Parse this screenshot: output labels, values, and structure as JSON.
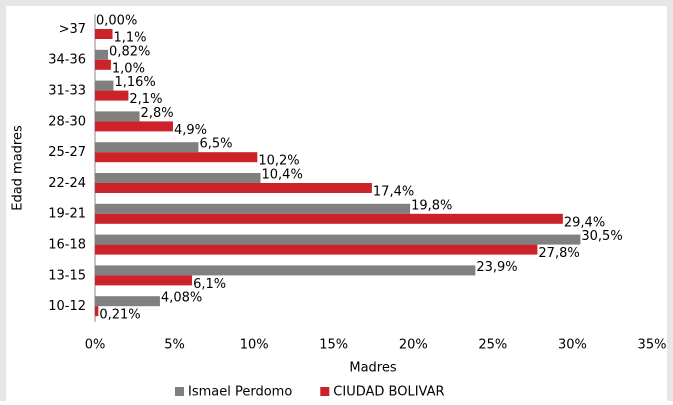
{
  "chart_data": {
    "type": "bar",
    "orientation": "horizontal",
    "categories": [
      ">37",
      "34-36",
      "31-33",
      "28-30",
      "25-27",
      "22-24",
      "19-21",
      "16-18",
      "13-15",
      "10-12"
    ],
    "series": [
      {
        "name": "Ismael Perdomo",
        "color": "#808080",
        "values": [
          0.0,
          0.82,
          1.16,
          2.8,
          6.5,
          10.4,
          19.8,
          30.5,
          23.9,
          4.08
        ],
        "value_labels": [
          "0,00%",
          "0,82%",
          "1,16%",
          "2,8%",
          "6,5%",
          "10,4%",
          "19,8%",
          "30,5%",
          "23,9%",
          "4,08%"
        ]
      },
      {
        "name": "CIUDAD BOLIVAR",
        "color": "#cc2229",
        "values": [
          1.1,
          1.0,
          2.1,
          4.9,
          10.2,
          17.4,
          29.4,
          27.8,
          6.1,
          0.21
        ],
        "value_labels": [
          "1,1%",
          "1,0%",
          "2,1%",
          "4,9%",
          "10,2%",
          "17,4%",
          "29,4%",
          "27,8%",
          "6,1%",
          "0,21%"
        ]
      }
    ],
    "xlabel": "Madres",
    "ylabel": "Edad madres",
    "xlim": [
      0,
      35
    ],
    "xticks": [
      {
        "value": 0,
        "label": "0%"
      },
      {
        "value": 5,
        "label": "5%"
      },
      {
        "value": 10,
        "label": "10%"
      },
      {
        "value": 15,
        "label": "15%"
      },
      {
        "value": 20,
        "label": "20%"
      },
      {
        "value": 25,
        "label": "25%"
      },
      {
        "value": 30,
        "label": "30%"
      },
      {
        "value": 35,
        "label": "35%"
      }
    ],
    "legend": "bottom",
    "grid": false
  }
}
